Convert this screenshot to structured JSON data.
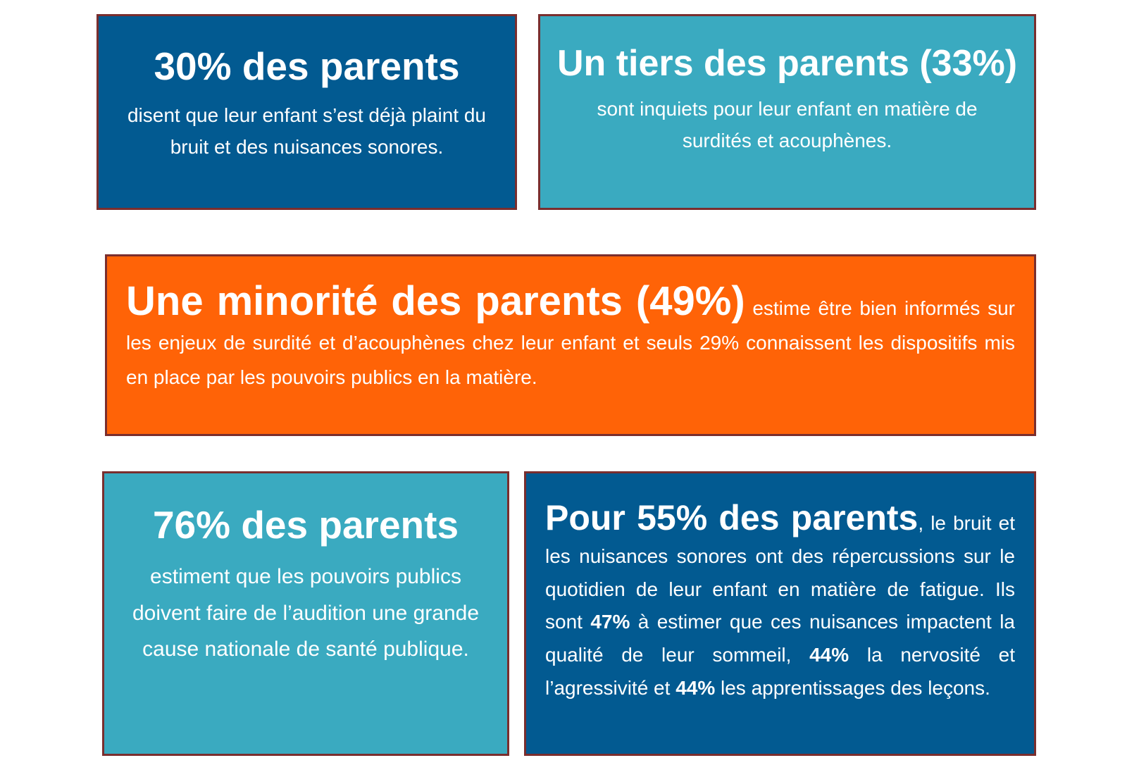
{
  "cards": {
    "card1": {
      "headline": "30% des parents",
      "body": "disent que leur enfant s’est déjà plaint du bruit et des nuisances sonores."
    },
    "card2": {
      "headline": "Un tiers des parents (33%)",
      "body": "sont inquiets pour leur enfant en matière de surdités et acouphènes."
    },
    "card3": {
      "headline": "Une minorité des parents (49%)",
      "body": " estime être bien informés sur les enjeux de surdité et d’acouphènes chez leur enfant et seuls 29% connaissent les dispositifs mis en place par les pouvoirs publics en la matière."
    },
    "card4": {
      "headline": "76% des parents",
      "body": "estiment que les pouvoirs publics doivent faire de l’audition une grande cause nationale de santé publique."
    },
    "card5": {
      "headline": "Pour 55% des parents",
      "body_part1": ", le bruit et les nuisances sonores ont des répercussions sur le quotidien de leur enfant en matière de fatigue. Ils sont ",
      "stat1": "47%",
      "body_part2": " à estimer que ces nuisances impactent la qualité de leur sommeil, ",
      "stat2": "44%",
      "body_part3": " la nervosité et l’agressivité et ",
      "stat3": "44%",
      "body_part4": " les apprentissages des leçons."
    }
  },
  "colors": {
    "dark_blue": "#025a91",
    "teal": "#3aaac0",
    "orange": "#ff6307",
    "border": "#7a2e2e"
  }
}
